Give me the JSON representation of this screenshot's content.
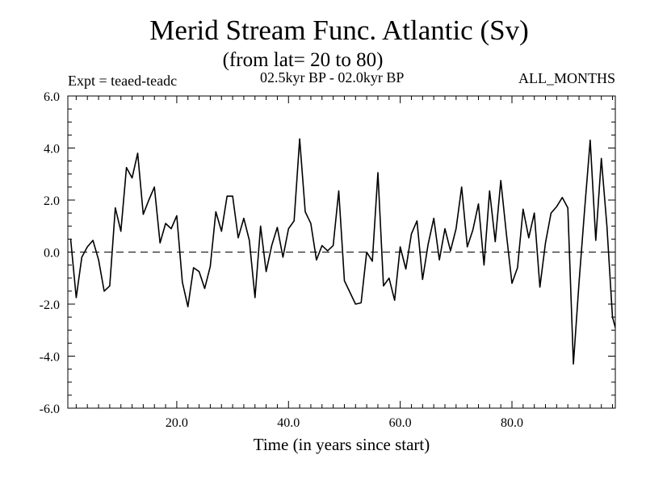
{
  "header": {
    "title": "Merid Stream Func. Atlantic (Sv)",
    "subtitle": "(from lat= 20 to 80)",
    "experiment": "Expt = teaed-teadc",
    "period": "02.5kyr BP - 02.0kyr BP",
    "months": "ALL_MONTHS"
  },
  "chart_data": {
    "type": "line",
    "title": "Merid Stream Func. Atlantic (Sv)",
    "subtitle": "(from lat= 20 to 80)",
    "xlabel": "Time (in years since start)",
    "ylabel": "",
    "xlim": [
      0.5,
      98.5
    ],
    "ylim": [
      -6.0,
      6.0
    ],
    "x_ticks": [
      20,
      40,
      60,
      80
    ],
    "x_tick_labels": [
      "20.0",
      "40.0",
      "60.0",
      "80.0"
    ],
    "y_ticks": [
      -6,
      -4,
      -2,
      0,
      2,
      4,
      6
    ],
    "y_tick_labels": [
      "-6.0",
      "-4.0",
      "-2.0",
      "0.0",
      "2.0",
      "4.0",
      "6.0"
    ],
    "reference_line": {
      "y": 0,
      "style": "dashed"
    },
    "grid": false,
    "series": [
      {
        "name": "Merid Stream Func",
        "color": "#000000",
        "x": [
          1,
          2,
          3,
          4,
          5,
          6,
          7,
          8,
          9,
          10,
          11,
          12,
          13,
          14,
          15,
          16,
          17,
          18,
          19,
          20,
          21,
          22,
          23,
          24,
          25,
          26,
          27,
          28,
          29,
          30,
          31,
          32,
          33,
          34,
          35,
          36,
          37,
          38,
          39,
          40,
          41,
          42,
          43,
          44,
          45,
          46,
          47,
          48,
          49,
          50,
          51,
          52,
          53,
          54,
          55,
          56,
          57,
          58,
          59,
          60,
          61,
          62,
          63,
          64,
          65,
          66,
          67,
          68,
          69,
          70,
          71,
          72,
          73,
          74,
          75,
          76,
          77,
          78,
          79,
          80,
          81,
          82,
          83,
          84,
          85,
          86,
          87,
          88,
          89,
          90,
          91,
          92,
          93,
          94,
          95,
          96,
          97,
          98,
          99
        ],
        "values": [
          0.5,
          -1.75,
          -0.2,
          0.2,
          0.45,
          -0.3,
          -1.5,
          -1.3,
          1.7,
          0.8,
          3.25,
          2.85,
          3.8,
          1.45,
          2.0,
          2.5,
          0.35,
          1.1,
          0.9,
          1.4,
          -1.15,
          -2.1,
          -0.6,
          -0.75,
          -1.4,
          -0.55,
          1.55,
          0.8,
          2.15,
          2.15,
          0.55,
          1.3,
          0.45,
          -1.75,
          1.0,
          -0.75,
          0.25,
          0.95,
          -0.2,
          0.9,
          1.2,
          4.35,
          1.55,
          1.1,
          -0.3,
          0.25,
          0.05,
          0.25,
          2.35,
          -1.1,
          -1.55,
          -2.0,
          -1.95,
          0.0,
          -0.35,
          3.05,
          -1.3,
          -1.0,
          -1.85,
          0.2,
          -0.65,
          0.7,
          1.2,
          -1.05,
          0.3,
          1.3,
          -0.3,
          0.9,
          0.05,
          0.9,
          2.5,
          0.2,
          0.85,
          1.85,
          -0.5,
          2.35,
          0.4,
          2.75,
          0.7,
          -1.2,
          -0.6,
          1.65,
          0.55,
          1.5,
          -1.35,
          0.35,
          1.5,
          1.75,
          2.1,
          1.7,
          -4.3,
          -1.2,
          1.6,
          4.3,
          0.45,
          3.6,
          1.0,
          -2.5,
          -3.3
        ]
      }
    ]
  }
}
